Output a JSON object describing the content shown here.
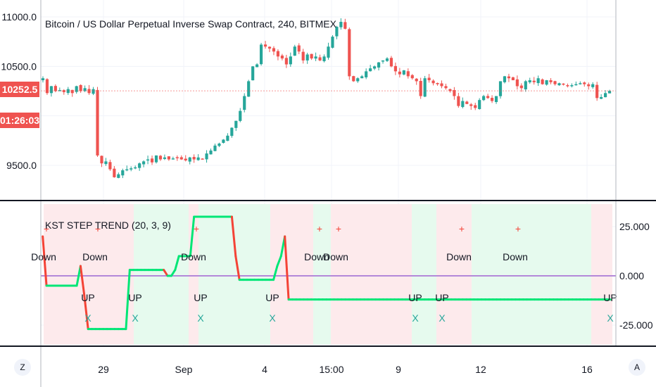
{
  "header": {
    "title": "Bitcoin / US Dollar Perpetual Inverse Swap Contract, 240, BITMEX",
    "current_price": "10252.5",
    "countdown": "01:26:03"
  },
  "indicator": {
    "title": "KST STEP TREND (20, 3, 9)"
  },
  "buttons": {
    "left": "Z",
    "right": "A"
  },
  "colors": {
    "up": "#26a69a",
    "down": "#ef5350",
    "kst_up": "#00e676",
    "kst_down": "#f44336",
    "zero_line": "#b388d9",
    "bg_up": "#e6faee",
    "bg_down": "#fdeaec"
  },
  "chart_data": [
    {
      "type": "candlestick",
      "title": "Bitcoin / US Dollar Perpetual Inverse Swap Contract, 240, BITMEX",
      "ylim": [
        9300,
        11050
      ],
      "y_ticks": [
        "11000.0",
        "10500.0",
        "9500.0"
      ],
      "x_ticks": [
        "29",
        "Sep",
        "4",
        "15:00",
        "9",
        "12",
        "16"
      ],
      "close_path": [
        10380,
        10230,
        10300,
        10250,
        10260,
        10240,
        10270,
        10230,
        10300,
        10250,
        10280,
        10230,
        10270,
        9600,
        9520,
        9540,
        9460,
        9380,
        9410,
        9450,
        9460,
        9470,
        9480,
        9520,
        9540,
        9560,
        9530,
        9600,
        9560,
        9580,
        9560,
        9570,
        9580,
        9560,
        9550,
        9580,
        9560,
        9580,
        9560,
        9620,
        9650,
        9700,
        9720,
        9760,
        9800,
        9880,
        9950,
        10050,
        10200,
        10350,
        10500,
        10520,
        10720,
        10700,
        10680,
        10650,
        10600,
        10580,
        10520,
        10600,
        10700,
        10650,
        10560,
        10620,
        10580,
        10600,
        10560,
        10600,
        10700,
        10800,
        10900,
        10950,
        10880,
        10400,
        10350,
        10380,
        10400,
        10450,
        10480,
        10500,
        10540,
        10560,
        10580,
        10500,
        10450,
        10420,
        10460,
        10400,
        10380,
        10350,
        10200,
        10380,
        10360,
        10330,
        10320,
        10300,
        10280,
        10250,
        10200,
        10100,
        10150,
        10120,
        10100,
        10080,
        10160,
        10200,
        10180,
        10150,
        10200,
        10350,
        10400,
        10380,
        10360,
        10300,
        10280,
        10350,
        10360,
        10340,
        10380,
        10320,
        10360,
        10340,
        10320,
        10330,
        10320,
        10300,
        10310,
        10320,
        10330,
        10320,
        10300,
        10320,
        10180,
        10190,
        10230,
        10252.5
      ]
    },
    {
      "type": "line",
      "title": "KST STEP TREND (20, 3, 9)",
      "ylim": [
        -30,
        30
      ],
      "y_ticks": [
        "25.000",
        "0.000",
        "-25.000"
      ],
      "kst_path": [
        20,
        -5,
        -5,
        -5,
        -5,
        -5,
        -5,
        -5,
        -5,
        -5,
        5,
        -10,
        -27,
        -27,
        -27,
        -27,
        -27,
        -27,
        -27,
        -27,
        -27,
        -27,
        -27,
        3,
        3,
        3,
        3,
        3,
        3,
        3,
        3,
        3,
        3,
        0,
        0,
        3,
        10,
        10,
        10,
        10,
        30,
        30,
        30,
        30,
        30,
        30,
        30,
        30,
        30,
        30,
        30,
        10,
        -2,
        -2,
        -2,
        -2,
        -2,
        -2,
        -2,
        -2,
        -2,
        -2,
        5,
        10,
        20,
        -12,
        -12,
        -12,
        -12,
        -12,
        -12,
        -12,
        -12,
        -12,
        -12,
        -12,
        -12,
        -12,
        -12,
        -12,
        -12,
        -12,
        -12,
        -12,
        -12,
        -12,
        -12,
        -12,
        -12,
        -12,
        -12,
        -12,
        -12,
        -12,
        -12,
        -12,
        -12,
        -12,
        -12,
        -12,
        -12,
        -12,
        -12,
        -12,
        -12,
        -12,
        -12,
        -12,
        -12,
        -12,
        -12,
        -12,
        -12,
        -12,
        -12,
        -12,
        -12,
        -12,
        -12,
        -12,
        -12,
        -12,
        -12,
        -12,
        -12,
        -12,
        -12,
        -12,
        -12,
        -12,
        -12,
        -12,
        -12,
        -12,
        -12,
        -12,
        -12,
        -12,
        -12,
        -12,
        -12,
        -12,
        -12,
        -12,
        -12,
        -12,
        -12,
        -12,
        -12,
        -12,
        -12
      ],
      "signals": [
        {
          "label": "Down",
          "type": "down"
        },
        {
          "label": "Down",
          "type": "down"
        },
        {
          "label": "UP",
          "type": "up"
        },
        {
          "label": "UP",
          "type": "up"
        },
        {
          "label": "Down",
          "type": "down"
        },
        {
          "label": "UP",
          "type": "up"
        },
        {
          "label": "UP",
          "type": "up"
        },
        {
          "label": "Down",
          "type": "down"
        },
        {
          "label": "Down",
          "type": "down"
        },
        {
          "label": "UP",
          "type": "up"
        },
        {
          "label": "UP",
          "type": "up"
        },
        {
          "label": "Down",
          "type": "down"
        },
        {
          "label": "Down",
          "type": "down"
        },
        {
          "label": "UP",
          "type": "up"
        }
      ]
    }
  ]
}
